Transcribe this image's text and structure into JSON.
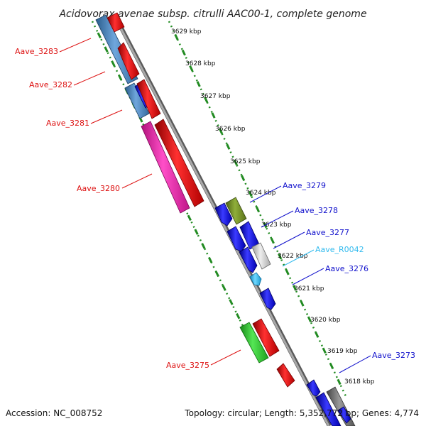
{
  "title": "Acidovorax avenae subsp. citrulli AAC00-1, complete genome",
  "footer": {
    "accession": "Accession: NC_008752",
    "summary": "Topology: circular; Length: 5,352,772 bp; Genes: 4,774"
  },
  "colors": {
    "label_left": "#dd1111",
    "label_right": "#1111cc",
    "label_rna": "#33bbee",
    "scale_dots": "#228b22",
    "backbone": "#8c8c8c"
  },
  "ticks": [
    {
      "label": "3629 kbp"
    },
    {
      "label": "3628 kbp"
    },
    {
      "label": "3627 kbp"
    },
    {
      "label": "3626 kbp"
    },
    {
      "label": "3625 kbp"
    },
    {
      "label": "3624 kbp"
    },
    {
      "label": "3623 kbp"
    },
    {
      "label": "3622 kbp"
    },
    {
      "label": "3621 kbp"
    },
    {
      "label": "3620 kbp"
    },
    {
      "label": "3619 kbp"
    },
    {
      "label": "3618 kbp"
    }
  ],
  "gene_labels": [
    {
      "text": "Aave_3283",
      "side": "left"
    },
    {
      "text": "Aave_3282",
      "side": "left"
    },
    {
      "text": "Aave_3281",
      "side": "left"
    },
    {
      "text": "Aave_3280",
      "side": "left"
    },
    {
      "text": "Aave_3275",
      "side": "left"
    },
    {
      "text": "Aave_3279",
      "side": "right"
    },
    {
      "text": "Aave_3278",
      "side": "right"
    },
    {
      "text": "Aave_3277",
      "side": "right"
    },
    {
      "text": "Aave_R0042",
      "side": "right",
      "kind": "rna"
    },
    {
      "text": "Aave_3276",
      "side": "right"
    },
    {
      "text": "Aave_3273",
      "side": "right"
    }
  ]
}
